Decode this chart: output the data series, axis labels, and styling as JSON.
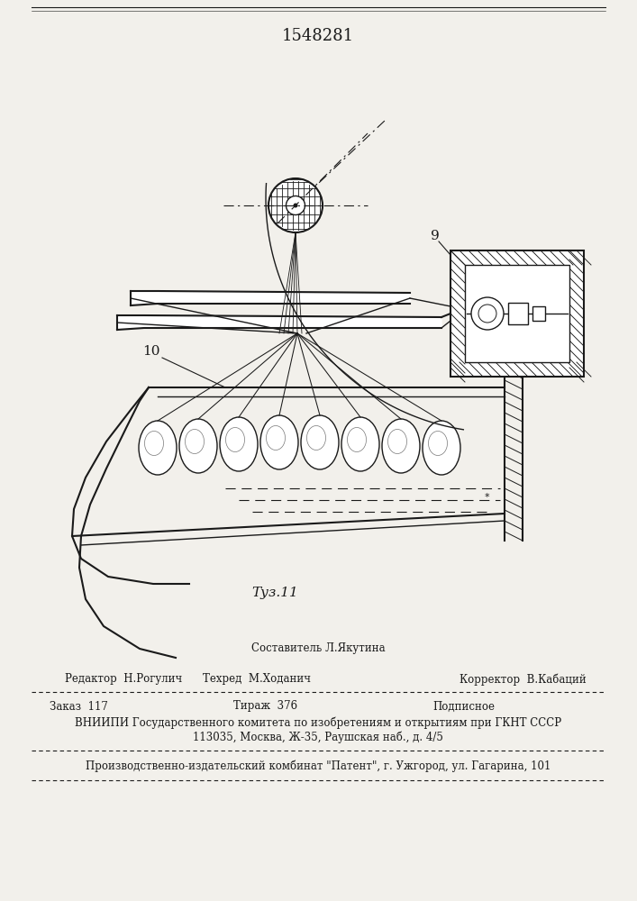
{
  "patent_number": "1548281",
  "figure_label": "Τуз.11",
  "label_9": "9",
  "label_10": "10",
  "line_color": "#1a1a1a",
  "bg_color": "#f2f0eb",
  "text_sestavitel": "Составитель Л.Якутина",
  "text_redaktor": "Редактор  Н.Рогулич",
  "text_tekhred": "Техред  М.Ходанич",
  "text_korrektor": "Корректор  В.Кабаций",
  "text_zakaz": "Заказ  117",
  "text_tirazh": "Тираж  376",
  "text_podpisnoe": "Подписное",
  "text_vniiipi": "ВНИИПИ Государственного комитета по изобретениям и открытиям при ГКНТ СССР",
  "text_address": "113035, Москва, Ж-35, Раушская наб., д. 4/5",
  "text_proizv": "Производственно-издательский комбинат \"Патент\", г. Ужгород, ул. Гагарина, 101"
}
